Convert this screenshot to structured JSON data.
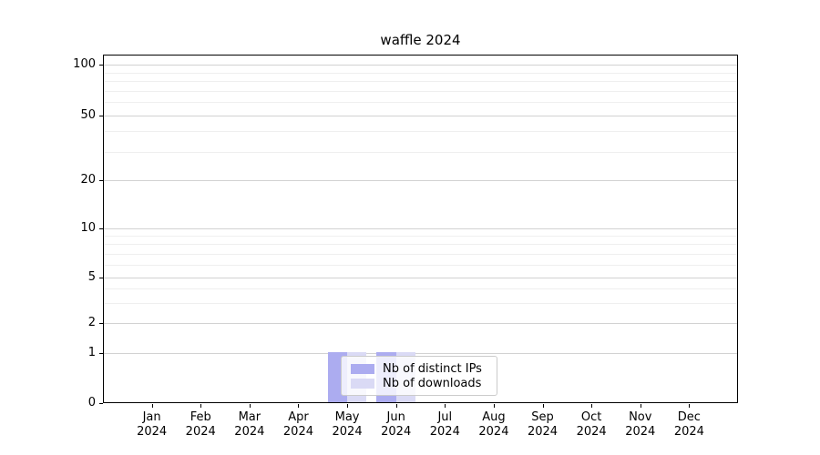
{
  "title": "waffle 2024",
  "chart_data": {
    "type": "bar",
    "title": "waffle 2024",
    "categories": [
      "Jan 2024",
      "Feb 2024",
      "Mar 2024",
      "Apr 2024",
      "May 2024",
      "Jun 2024",
      "Jul 2024",
      "Aug 2024",
      "Sep 2024",
      "Oct 2024",
      "Nov 2024",
      "Dec 2024"
    ],
    "series": [
      {
        "name": "Nb of distinct IPs",
        "color": "#acacf0",
        "values": [
          0,
          0,
          0,
          0,
          1,
          1,
          0,
          0,
          0,
          0,
          0,
          0
        ]
      },
      {
        "name": "Nb of downloads",
        "color": "#dadaf5",
        "values": [
          0,
          0,
          0,
          0,
          1,
          1,
          0,
          0,
          0,
          0,
          0,
          0
        ]
      }
    ],
    "xlabel": "",
    "ylabel": "",
    "y_ticks": [
      100,
      50,
      20,
      10,
      5,
      2,
      1,
      0
    ],
    "ylim": [
      0,
      113
    ],
    "yscale": "symlog (linear 0-1, log above 1)",
    "grid": "horizontal major + faint minor gridlines",
    "legend_position": "lower center, overlapping May/Jun bars, semi-transparent white box",
    "bar_width_fraction": 0.4,
    "bar_grouping": "two bars side by side per month, both height 1 in May and Jun only"
  },
  "legend": {
    "items": [
      {
        "label": "Nb of distinct IPs",
        "color": "#acacf0"
      },
      {
        "label": "Nb of downloads",
        "color": "#dadaf5"
      }
    ]
  },
  "y_axis": {
    "tick_labels": [
      "100",
      "50",
      "20",
      "10",
      "5",
      "2",
      "1",
      "0"
    ]
  },
  "x_axis": {
    "tick_labels_line1": [
      "Jan",
      "Feb",
      "Mar",
      "Apr",
      "May",
      "Jun",
      "Jul",
      "Aug",
      "Sep",
      "Oct",
      "Nov",
      "Dec"
    ],
    "tick_labels_line2": "2024"
  }
}
